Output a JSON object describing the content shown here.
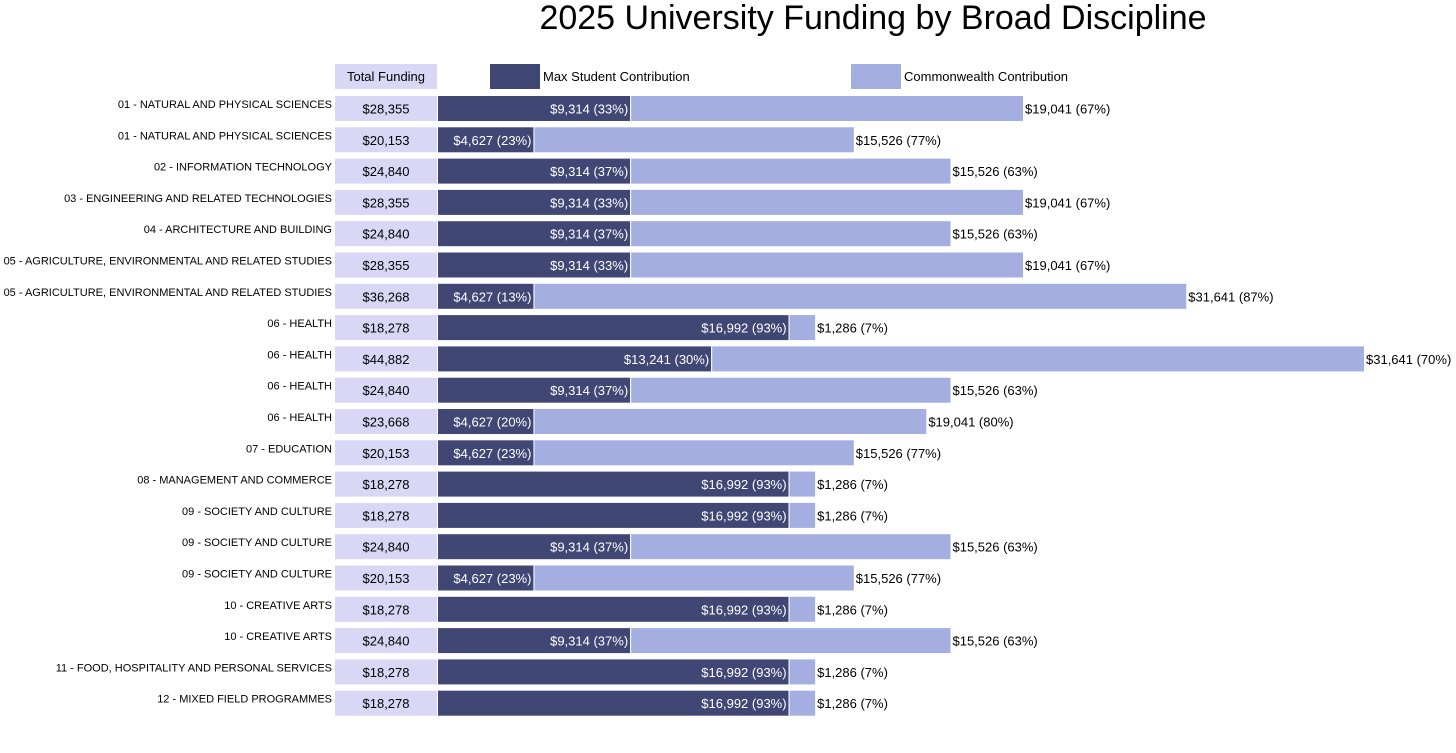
{
  "chart_data": {
    "type": "bar",
    "orientation": "horizontal",
    "stacked": true,
    "title": "2025 University Funding by Broad Discipline",
    "total_header": "Total Funding",
    "colors": {
      "student": "#414775",
      "commonwealth": "#a4aee0",
      "total_bg": "#d9d6f6"
    },
    "series": [
      {
        "name": "Max Student Contribution",
        "key": "student"
      },
      {
        "name": "Commonwealth Contribution",
        "key": "commonwealth"
      }
    ],
    "rows": [
      {
        "category": "01 - NATURAL AND PHYSICAL SCIENCES",
        "total": "$28,355",
        "student": 9314,
        "student_label": "$9,314 (33%)",
        "commonwealth": 19041,
        "commonwealth_label": "$19,041 (67%)"
      },
      {
        "category": "01 - NATURAL AND PHYSICAL SCIENCES",
        "total": "$20,153",
        "student": 4627,
        "student_label": "$4,627 (23%)",
        "commonwealth": 15526,
        "commonwealth_label": "$15,526 (77%)"
      },
      {
        "category": "02 - INFORMATION TECHNOLOGY",
        "total": "$24,840",
        "student": 9314,
        "student_label": "$9,314 (37%)",
        "commonwealth": 15526,
        "commonwealth_label": "$15,526 (63%)"
      },
      {
        "category": "03 - ENGINEERING AND RELATED TECHNOLOGIES",
        "total": "$28,355",
        "student": 9314,
        "student_label": "$9,314 (33%)",
        "commonwealth": 19041,
        "commonwealth_label": "$19,041 (67%)"
      },
      {
        "category": "04 - ARCHITECTURE AND BUILDING",
        "total": "$24,840",
        "student": 9314,
        "student_label": "$9,314 (37%)",
        "commonwealth": 15526,
        "commonwealth_label": "$15,526 (63%)"
      },
      {
        "category": "05 - AGRICULTURE, ENVIRONMENTAL AND RELATED STUDIES",
        "total": "$28,355",
        "student": 9314,
        "student_label": "$9,314 (33%)",
        "commonwealth": 19041,
        "commonwealth_label": "$19,041 (67%)"
      },
      {
        "category": "05 - AGRICULTURE, ENVIRONMENTAL AND RELATED STUDIES",
        "total": "$36,268",
        "student": 4627,
        "student_label": "$4,627 (13%)",
        "commonwealth": 31641,
        "commonwealth_label": "$31,641 (87%)"
      },
      {
        "category": "06 - HEALTH",
        "total": "$18,278",
        "student": 16992,
        "student_label": "$16,992 (93%)",
        "commonwealth": 1286,
        "commonwealth_label": "$1,286 (7%)"
      },
      {
        "category": "06 - HEALTH",
        "total": "$44,882",
        "student": 13241,
        "student_label": "$13,241 (30%)",
        "commonwealth": 31641,
        "commonwealth_label": "$31,641 (70%)"
      },
      {
        "category": "06 - HEALTH",
        "total": "$24,840",
        "student": 9314,
        "student_label": "$9,314 (37%)",
        "commonwealth": 15526,
        "commonwealth_label": "$15,526 (63%)"
      },
      {
        "category": "06 - HEALTH",
        "total": "$23,668",
        "student": 4627,
        "student_label": "$4,627 (20%)",
        "commonwealth": 19041,
        "commonwealth_label": "$19,041 (80%)"
      },
      {
        "category": "07 - EDUCATION",
        "total": "$20,153",
        "student": 4627,
        "student_label": "$4,627 (23%)",
        "commonwealth": 15526,
        "commonwealth_label": "$15,526 (77%)"
      },
      {
        "category": "08 - MANAGEMENT AND COMMERCE",
        "total": "$18,278",
        "student": 16992,
        "student_label": "$16,992 (93%)",
        "commonwealth": 1286,
        "commonwealth_label": "$1,286 (7%)"
      },
      {
        "category": "09 - SOCIETY AND CULTURE",
        "total": "$18,278",
        "student": 16992,
        "student_label": "$16,992 (93%)",
        "commonwealth": 1286,
        "commonwealth_label": "$1,286 (7%)"
      },
      {
        "category": "09 - SOCIETY AND CULTURE",
        "total": "$24,840",
        "student": 9314,
        "student_label": "$9,314 (37%)",
        "commonwealth": 15526,
        "commonwealth_label": "$15,526 (63%)"
      },
      {
        "category": "09 - SOCIETY AND CULTURE",
        "total": "$20,153",
        "student": 4627,
        "student_label": "$4,627 (23%)",
        "commonwealth": 15526,
        "commonwealth_label": "$15,526 (77%)"
      },
      {
        "category": "10 - CREATIVE ARTS",
        "total": "$18,278",
        "student": 16992,
        "student_label": "$16,992 (93%)",
        "commonwealth": 1286,
        "commonwealth_label": "$1,286 (7%)"
      },
      {
        "category": "10 - CREATIVE ARTS",
        "total": "$24,840",
        "student": 9314,
        "student_label": "$9,314 (37%)",
        "commonwealth": 15526,
        "commonwealth_label": "$15,526 (63%)"
      },
      {
        "category": "11 - FOOD, HOSPITALITY AND PERSONAL SERVICES",
        "total": "$18,278",
        "student": 16992,
        "student_label": "$16,992 (93%)",
        "commonwealth": 1286,
        "commonwealth_label": "$1,286 (7%)"
      },
      {
        "category": "12 - MIXED FIELD PROGRAMMES",
        "total": "$18,278",
        "student": 16992,
        "student_label": "$16,992 (93%)",
        "commonwealth": 1286,
        "commonwealth_label": "$1,286 (7%)"
      }
    ]
  }
}
